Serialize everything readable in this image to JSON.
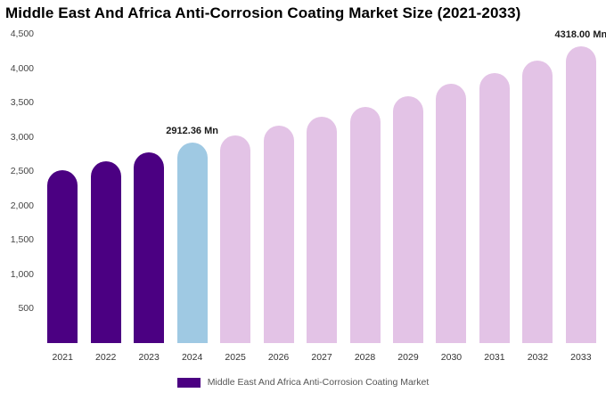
{
  "title": "Middle East And Africa Anti-Corrosion Coating Market Size (2021-2033)",
  "legend": {
    "label": "Middle East And Africa Anti-Corrosion Coating Market"
  },
  "colors": {
    "historical": "#4B0082",
    "highlight": "#9FC9E3",
    "forecast": "#E3C3E6"
  },
  "chart_data": {
    "type": "bar",
    "title": "Middle East And Africa Anti-Corrosion Coating Market Size (2021-2033)",
    "unit": "Mn",
    "categories": [
      "2021",
      "2022",
      "2023",
      "2024",
      "2025",
      "2026",
      "2027",
      "2028",
      "2029",
      "2030",
      "2031",
      "2032",
      "2033"
    ],
    "values": [
      2510,
      2650,
      2770,
      2912.36,
      3020,
      3160,
      3300,
      3440,
      3590,
      3770,
      3930,
      4110,
      4318
    ],
    "bar_roles": [
      "historical",
      "historical",
      "historical",
      "highlight",
      "forecast",
      "forecast",
      "forecast",
      "forecast",
      "forecast",
      "forecast",
      "forecast",
      "forecast",
      "forecast"
    ],
    "annotations": [
      {
        "index": 3,
        "text": "2912.36 Mn"
      },
      {
        "index": 12,
        "text": "4318.00 Mn"
      }
    ],
    "ylim": [
      0,
      4500
    ],
    "y_ticks": [
      {
        "value": 4500,
        "label": "4,500"
      },
      {
        "value": 4000,
        "label": "4,000"
      },
      {
        "value": 3500,
        "label": "3,500"
      },
      {
        "value": 3000,
        "label": "3,000"
      },
      {
        "value": 2500,
        "label": "2,500"
      },
      {
        "value": 2000,
        "label": "2,000"
      },
      {
        "value": 1500,
        "label": "1,500"
      },
      {
        "value": 1000,
        "label": "1,000"
      },
      {
        "value": 500,
        "label": "500"
      }
    ],
    "grid": false,
    "legend_position": "bottom"
  }
}
